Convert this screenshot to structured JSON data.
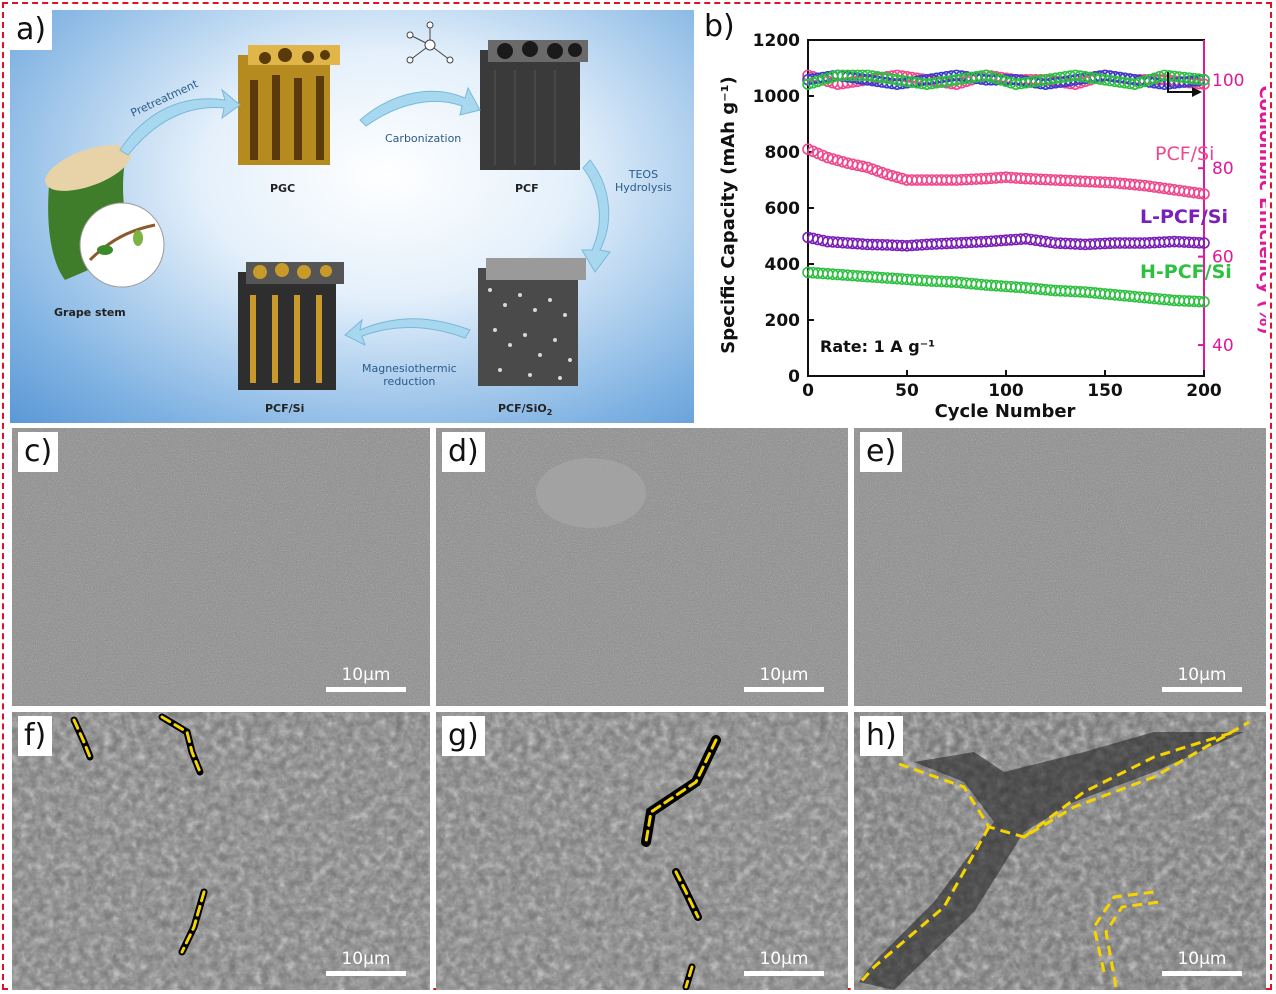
{
  "panel_labels": {
    "a": "a)",
    "b": "b)",
    "c": "c)",
    "d": "d)",
    "e": "e)",
    "f": "f)",
    "g": "g)",
    "h": "h)"
  },
  "schematic": {
    "grape_stem": "Grape stem",
    "pgc": "PGC",
    "pcf": "PCF",
    "pcf_sio2": "PCF/SiO",
    "pcf_sio2_sub": "2",
    "pcf_si": "PCF/Si",
    "pretreatment": "Pretreatment",
    "carbonization": "Carbonization",
    "teos_line1": "TEOS",
    "teos_line2": "Hydrolysis",
    "mg_line1": "Magnesiothermic",
    "mg_line2": "reduction"
  },
  "scale_bar": "10μm",
  "chart_data": {
    "type": "scatter",
    "xlabel": "Cycle Number",
    "ylabel": "Specific Capacity (mAh g⁻¹)",
    "y2label": "Coulombic Efficiency (%)",
    "xlim": [
      0,
      200
    ],
    "ylim": [
      0,
      1200
    ],
    "y2lim": [
      33,
      109
    ],
    "xticks": [
      0,
      50,
      100,
      150,
      200
    ],
    "yticks": [
      0,
      200,
      400,
      600,
      800,
      1000,
      1200
    ],
    "y2ticks": [
      40,
      60,
      80,
      100
    ],
    "annotation": "Rate: 1 A g⁻¹",
    "series": [
      {
        "name": "PCF/Si",
        "color": "#f0468c",
        "axis": "left",
        "x": [
          0,
          10,
          20,
          30,
          40,
          50,
          60,
          75,
          90,
          100,
          110,
          125,
          140,
          155,
          170,
          185,
          200
        ],
        "values": [
          810,
          780,
          760,
          745,
          720,
          700,
          700,
          700,
          705,
          710,
          705,
          700,
          695,
          690,
          680,
          665,
          650
        ]
      },
      {
        "name": "L-PCF/Si",
        "color": "#7a1fb8",
        "axis": "left",
        "x": [
          0,
          10,
          20,
          30,
          40,
          50,
          60,
          75,
          90,
          100,
          110,
          125,
          140,
          155,
          170,
          185,
          200
        ],
        "values": [
          495,
          480,
          475,
          470,
          468,
          465,
          470,
          475,
          480,
          485,
          490,
          475,
          470,
          475,
          475,
          480,
          475
        ]
      },
      {
        "name": "H-PCF/Si",
        "color": "#2ec040",
        "axis": "left",
        "x": [
          0,
          10,
          20,
          30,
          40,
          50,
          60,
          75,
          90,
          100,
          110,
          125,
          140,
          155,
          170,
          185,
          200
        ],
        "values": [
          370,
          365,
          360,
          355,
          350,
          345,
          340,
          335,
          325,
          320,
          315,
          305,
          300,
          290,
          280,
          270,
          265
        ]
      },
      {
        "name": "PCF/Si CE",
        "color": "#f0468c",
        "axis": "right",
        "x": [
          0,
          15,
          30,
          45,
          60,
          75,
          90,
          105,
          120,
          135,
          150,
          165,
          180,
          200
        ],
        "values": [
          101,
          99,
          100,
          101,
          100,
          99,
          101,
          100,
          100,
          99,
          101,
          100,
          100,
          99
        ]
      },
      {
        "name": "L-PCF/Si CE",
        "color": "#3a3ad0",
        "axis": "right",
        "x": [
          0,
          15,
          30,
          45,
          60,
          75,
          90,
          105,
          120,
          135,
          150,
          165,
          180,
          200
        ],
        "values": [
          100,
          101,
          100,
          99,
          100,
          101,
          100,
          100,
          99,
          100,
          101,
          100,
          99,
          100
        ]
      },
      {
        "name": "H-PCF/Si CE",
        "color": "#2ec040",
        "axis": "right",
        "x": [
          0,
          15,
          30,
          45,
          60,
          75,
          90,
          105,
          120,
          135,
          150,
          165,
          180,
          200
        ],
        "values": [
          99,
          101,
          101,
          100,
          99,
          100,
          101,
          99,
          100,
          101,
          100,
          99,
          101,
          100
        ]
      }
    ],
    "series_labels": [
      "PCF/Si",
      "L-PCF/Si",
      "H-PCF/Si"
    ]
  }
}
